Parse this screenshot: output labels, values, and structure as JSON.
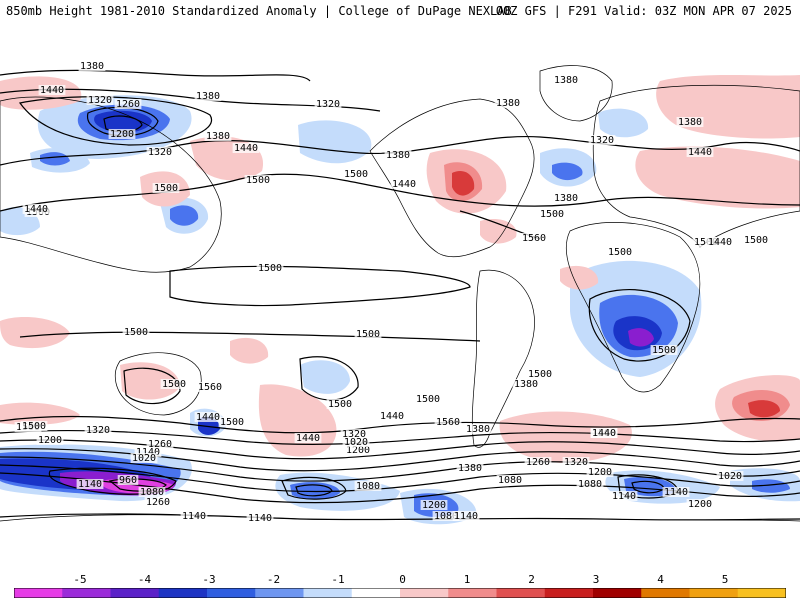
{
  "header": {
    "title": "850mb Height 1981-2010 Standardized Anomaly | College of DuPage NEXLAB",
    "run_info": "00Z GFS | F291 Valid: 03Z MON APR 07 2025"
  },
  "map": {
    "projection": "global equirectangular",
    "anomaly_colors": {
      "neg5": "#e040e0",
      "neg4": "#8a1ecf",
      "neg3": "#1a34c8",
      "neg2": "#4a74ee",
      "neg1": "#c4dcfb",
      "pos1": "#f8c8c8",
      "pos2": "#f08c8c",
      "pos3": "#d83a3a",
      "pos4": "#b01010",
      "pos5": "#f0a010"
    },
    "contour_color": "#000000",
    "contour_labels": [
      "1380",
      "1440",
      "1320",
      "1260",
      "1380",
      "1200",
      "1320",
      "1380",
      "1440",
      "1500",
      "1500",
      "1500",
      "1320",
      "1380",
      "1380",
      "1440",
      "1500",
      "1500",
      "1380",
      "1380",
      "1320",
      "1380",
      "1440",
      "1500",
      "1500",
      "1560",
      "1500",
      "1440",
      "1500",
      "1500",
      "1500",
      "1500",
      "1560",
      "1500",
      "1500",
      "1380",
      "1500",
      "1560",
      "1440",
      "1500",
      "1440",
      "1500",
      "1560",
      "1440",
      "1380",
      "1320",
      "1200",
      "1260",
      "1140",
      "1020",
      "960",
      "1140",
      "1080",
      "1260",
      "1320",
      "1200",
      "1140",
      "1020",
      "1080",
      "1200",
      "1080",
      "1140",
      "1380",
      "1260",
      "1320",
      "1200",
      "1080",
      "1140",
      "1080",
      "1140",
      "1020",
      "1200",
      "1140",
      "1500",
      "1500",
      "1440",
      "1440"
    ]
  },
  "colorbar": {
    "ticks": [
      "-5",
      "-4",
      "-3",
      "-2",
      "-1",
      "0",
      "1",
      "2",
      "3",
      "4",
      "5"
    ],
    "colors": [
      "#e63ce6",
      "#9b2bd9",
      "#5b21c8",
      "#1d34c4",
      "#2f5ee0",
      "#6e96f0",
      "#c4dcfb",
      "#ffffff",
      "#f8c8c8",
      "#f08c8c",
      "#e05050",
      "#c81e1e",
      "#a00000",
      "#e07800",
      "#f0a010",
      "#f8c020"
    ]
  }
}
